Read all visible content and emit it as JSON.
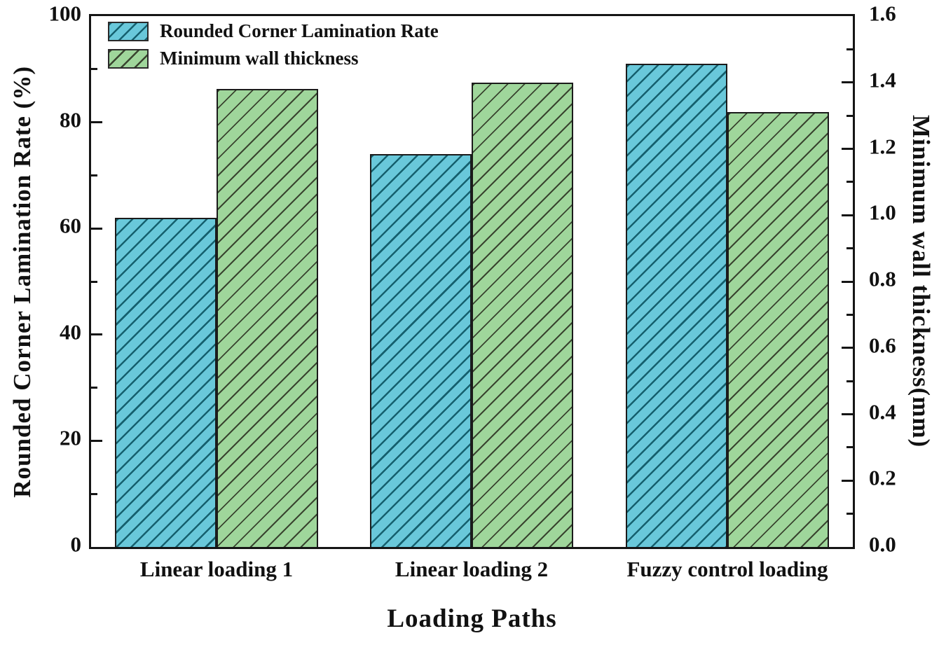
{
  "chart_data": {
    "type": "bar",
    "title": "",
    "xlabel": "Loading Paths",
    "ylabel_left": "Rounded Corner Lamination Rate (%)",
    "ylabel_right": "Minimum wall thickness(mm)",
    "categories": [
      "Linear loading 1",
      "Linear loading 2",
      "Fuzzy control loading"
    ],
    "series": [
      {
        "name": "Rounded Corner Lamination Rate",
        "axis": "left",
        "unit": "%",
        "values": [
          62,
          74,
          91
        ],
        "fill_color": "#69c8da",
        "hatch_color": "#15606e",
        "hatch_style": "/"
      },
      {
        "name": "Minimum wall thickness",
        "axis": "right",
        "unit": "mm",
        "values": [
          1.38,
          1.4,
          1.31
        ],
        "fill_color": "#9fd69b",
        "hatch_color": "#39442f",
        "hatch_style": "/"
      }
    ],
    "left_axis": {
      "min": 0,
      "max": 100,
      "tick_labels": [
        "0",
        "20",
        "40",
        "60",
        "80",
        "100"
      ],
      "minor_ticks_between_majors": 1
    },
    "right_axis": {
      "min": 0,
      "max": 1.6,
      "tick_labels": [
        "0.0",
        "0.2",
        "0.4",
        "0.6",
        "0.8",
        "1.0",
        "1.2",
        "1.4",
        "1.6"
      ],
      "minor_ticks_between_majors": 1
    },
    "legend_position": "top-left",
    "grid": false,
    "frame_color": "#151515",
    "background_color": "#ffffff"
  }
}
